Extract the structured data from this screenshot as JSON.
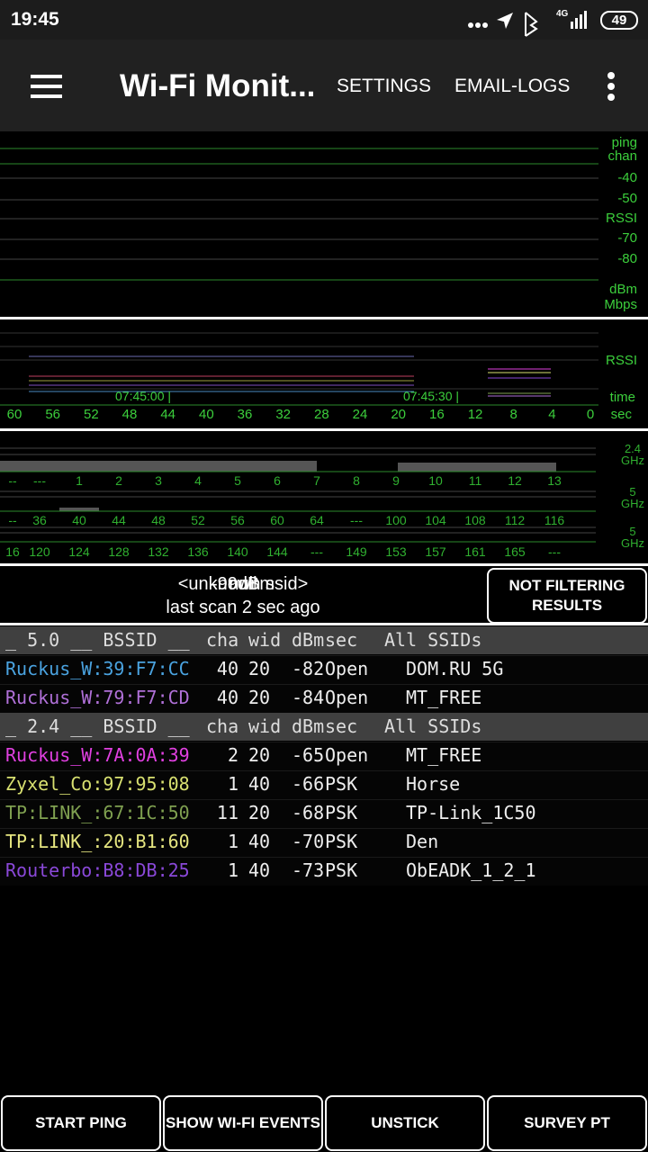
{
  "status_bar": {
    "time": "19:45",
    "network": "4G",
    "battery": "49"
  },
  "toolbar": {
    "title": "Wi-Fi Monit...",
    "actions": [
      "SETTINGS",
      "EMAIL-LOGS"
    ]
  },
  "signal_graph": {
    "labels": [
      "ping",
      "chan",
      "-40",
      "-50",
      "RSSI",
      "-70",
      "-80",
      "dBm",
      "Mbps"
    ]
  },
  "time_graph": {
    "rssi_label": "RSSI",
    "time_label": "time",
    "timestamps": [
      "07:45:00 |",
      "07:45:30 |"
    ],
    "seconds": [
      "60",
      "56",
      "52",
      "48",
      "44",
      "40",
      "36",
      "32",
      "28",
      "24",
      "20",
      "16",
      "12",
      "8",
      "4",
      "0"
    ],
    "unit": "sec"
  },
  "channel_map": {
    "bands": [
      {
        "label": "2.4 GHz",
        "channels": [
          "--",
          "---",
          "1",
          "2",
          "3",
          "4",
          "5",
          "6",
          "7",
          "8",
          "9",
          "10",
          "11",
          "12",
          "13"
        ]
      },
      {
        "label": "5 GHz",
        "channels": [
          "--",
          "36",
          "40",
          "44",
          "48",
          "52",
          "56",
          "60",
          "64",
          "---",
          "100",
          "104",
          "108",
          "112",
          "116"
        ]
      },
      {
        "label": "5 GHz",
        "channels": [
          "16",
          "120",
          "124",
          "128",
          "132",
          "136",
          "140",
          "144",
          "---",
          "149",
          "153",
          "157",
          "161",
          "165",
          "---"
        ]
      }
    ]
  },
  "scan_status": {
    "ssid": "<unknown ssid>",
    "bssid": "null",
    "rssi": "-99dBm",
    "last_scan": "last scan 2 sec ago",
    "filter_button": "NOT FILTERING RESULTS"
  },
  "table": {
    "columns": [
      "cha",
      "wid",
      "dBm",
      "sec",
      "All SSIDs"
    ],
    "groups": [
      {
        "header": "_ 5.0 __ BSSID __",
        "rows": [
          {
            "bssid": "Ruckus_W:39:F7:CC",
            "color": "#4aa3e0",
            "cha": "40",
            "wid": "20",
            "dbm": "-82",
            "sec": "Open",
            "ssid": "DOM.RU 5G"
          },
          {
            "bssid": "Ruckus_W:79:F7:CD",
            "color": "#b070d8",
            "cha": "40",
            "wid": "20",
            "dbm": "-84",
            "sec": "Open",
            "ssid": "MT_FREE"
          }
        ]
      },
      {
        "header": "_ 2.4 __ BSSID __",
        "rows": [
          {
            "bssid": "Ruckus_W:7A:0A:39",
            "color": "#e040e0",
            "cha": "2",
            "wid": "20",
            "dbm": "-65",
            "sec": "Open",
            "ssid": "MT_FREE"
          },
          {
            "bssid": "Zyxel_Co:97:95:08",
            "color": "#d8e070",
            "cha": "1",
            "wid": "40",
            "dbm": "-66",
            "sec": "PSK",
            "ssid": "Horse"
          },
          {
            "bssid": "TP:LINK_:67:1C:50",
            "color": "#7fa050",
            "cha": "11",
            "wid": "20",
            "dbm": "-68",
            "sec": "PSK",
            "ssid": "TP-Link_1C50"
          },
          {
            "bssid": "TP:LINK_:20:B1:60",
            "color": "#e6e680",
            "cha": "1",
            "wid": "40",
            "dbm": "-70",
            "sec": "PSK",
            "ssid": "Den"
          },
          {
            "bssid": "Routerbo:B8:DB:25",
            "color": "#8a48d8",
            "cha": "1",
            "wid": "40",
            "dbm": "-73",
            "sec": "PSK",
            "ssid": "ObEADK_1_2_1"
          }
        ]
      }
    ]
  },
  "buttons": [
    "START PING",
    "SHOW WI-FI EVENTS",
    "UNSTICK",
    "SURVEY PT"
  ]
}
